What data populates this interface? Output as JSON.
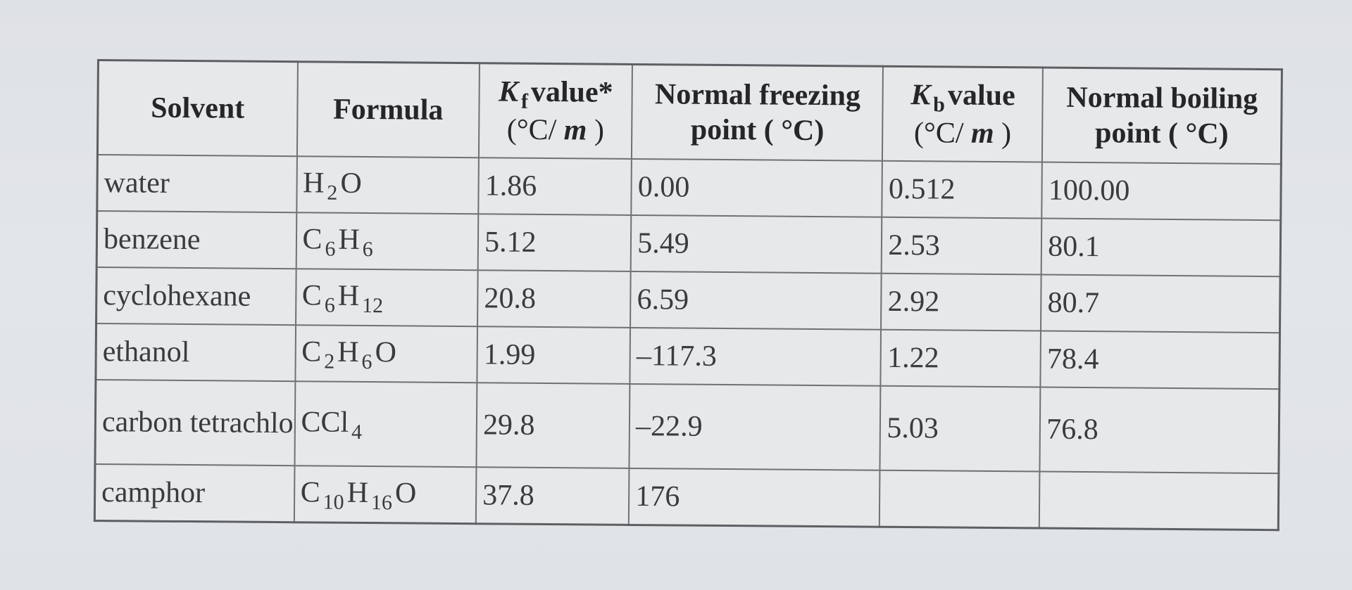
{
  "table": {
    "headers": {
      "solvent": "Solvent",
      "formula": "Formula",
      "kf_symbol": "K",
      "kf_subscript": "f",
      "kf_label": "value*",
      "kf_unit_open": "(°C/",
      "kf_unit_m": "m",
      "kf_unit_close": ")",
      "fp_line1": "Normal freezing",
      "fp_line2": "point ( °C)",
      "kb_symbol": "K",
      "kb_subscript": "b",
      "kb_label": "value",
      "kb_unit_open": "(°C/",
      "kb_unit_m": "m",
      "kb_unit_close": ")",
      "bp_line1": "Normal boiling",
      "bp_line2": "point ( °C)"
    },
    "rows": [
      {
        "solvent": "water",
        "formula": [
          {
            "el": "H",
            "sub": "2"
          },
          {
            "el": "O",
            "sub": ""
          }
        ],
        "kf": "1.86",
        "fp": "0.00",
        "kb": "0.512",
        "bp": "100.00"
      },
      {
        "solvent": "benzene",
        "formula": [
          {
            "el": "C",
            "sub": "6"
          },
          {
            "el": "H",
            "sub": "6"
          }
        ],
        "kf": "5.12",
        "fp": "5.49",
        "kb": "2.53",
        "bp": "80.1"
      },
      {
        "solvent": "cyclohexane",
        "formula": [
          {
            "el": "C",
            "sub": "6"
          },
          {
            "el": "H",
            "sub": "12"
          }
        ],
        "kf": "20.8",
        "fp": "6.59",
        "kb": "2.92",
        "bp": "80.7"
      },
      {
        "solvent": "ethanol",
        "formula": [
          {
            "el": "C",
            "sub": "2"
          },
          {
            "el": "H",
            "sub": "6"
          },
          {
            "el": "O",
            "sub": ""
          }
        ],
        "kf": "1.99",
        "fp": "–117.3",
        "kb": "1.22",
        "bp": "78.4"
      },
      {
        "solvent": "carbon tetrachloride",
        "formula": [
          {
            "el": "CCl",
            "sub": "4"
          }
        ],
        "kf": "29.8",
        "fp": "–22.9",
        "kb": "5.03",
        "bp": "76.8",
        "tall": true
      },
      {
        "solvent": "camphor",
        "formula": [
          {
            "el": "C",
            "sub": "10"
          },
          {
            "el": "H",
            "sub": "16"
          },
          {
            "el": "O",
            "sub": ""
          }
        ],
        "kf": "37.8",
        "fp": "176",
        "kb": "",
        "bp": ""
      }
    ]
  }
}
